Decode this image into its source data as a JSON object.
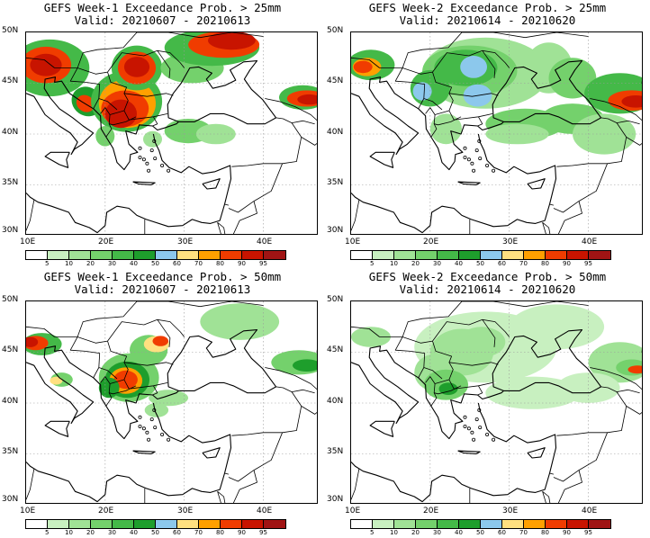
{
  "panels": [
    {
      "title": "GEFS Week-1 Exceedance Prob. > 25mm",
      "valid": "Valid: 20210607 - 20210613"
    },
    {
      "title": "GEFS Week-2 Exceedance Prob. > 25mm",
      "valid": "Valid: 20210614 - 20210620"
    },
    {
      "title": "GEFS Week-1 Exceedance Prob. > 50mm",
      "valid": "Valid: 20210607 - 20210613"
    },
    {
      "title": "GEFS Week-2 Exceedance Prob. > 50mm",
      "valid": "Valid: 20210614 - 20210620"
    }
  ],
  "axes": {
    "lat_labels": [
      "50N",
      "45N",
      "40N",
      "35N",
      "30N"
    ],
    "lon_labels": [
      "10E",
      "20E",
      "30E",
      "40E"
    ]
  },
  "colorbar": {
    "labels": [
      "5",
      "10",
      "20",
      "30",
      "40",
      "50",
      "60",
      "70",
      "80",
      "90",
      "95"
    ],
    "colors": [
      "#ffffff",
      "#c8f0c0",
      "#a0e296",
      "#74d16c",
      "#44b948",
      "#1e9e2c",
      "#8cc8ec",
      "#ffe080",
      "#ffa000",
      "#f03c00",
      "#c81400",
      "#a01414"
    ]
  }
}
